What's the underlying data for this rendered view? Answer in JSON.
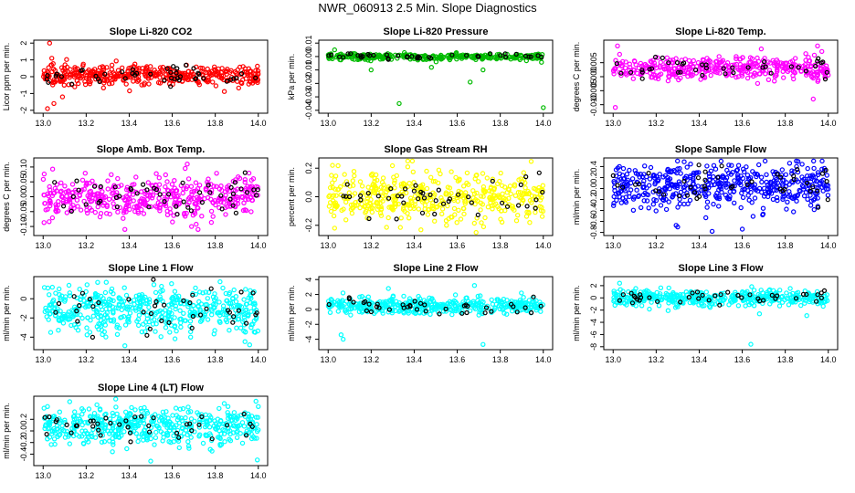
{
  "title": "NWR_060913  2.5 Min. Slope Diagnostics",
  "colors": {
    "axis": "#000000",
    "background": "#ffffff"
  },
  "chart_data": [
    {
      "type": "scatter",
      "title": "Slope Li-820 CO2",
      "ylabel": "Licor ppm per min.",
      "xlim": [
        13.0,
        14.0
      ],
      "ylim": [
        -2,
        2
      ],
      "xticks": [
        "13.0",
        "13.2",
        "13.4",
        "13.6",
        "13.8",
        "14.0"
      ],
      "yticks": [
        -2,
        -1,
        0,
        1,
        2
      ],
      "yticklabels": [
        "-2",
        "-1",
        "0",
        "1",
        "2"
      ],
      "points_color": "#ff0000",
      "main_band": {
        "center": 0.1,
        "spread": 0.35
      },
      "outliers": [
        [
          13.03,
          2.0
        ],
        [
          13.02,
          -1.9
        ],
        [
          13.05,
          -1.6
        ],
        [
          13.04,
          1.1
        ],
        [
          13.09,
          -1.2
        ]
      ],
      "series": [
        {
          "name": "points",
          "color": "#ff0000",
          "n": 420
        },
        {
          "name": "highlights",
          "color": "#000000",
          "n": 45
        }
      ]
    },
    {
      "type": "scatter",
      "title": "Slope Li-820 Pressure",
      "ylabel": "kPa per min.",
      "xlim": [
        13.0,
        14.0
      ],
      "ylim": [
        -0.04,
        0.01
      ],
      "xticks": [
        "13.0",
        "13.2",
        "13.4",
        "13.6",
        "13.8",
        "14.0"
      ],
      "yticks": [
        -0.04,
        -0.03,
        -0.02,
        -0.01,
        0.0,
        0.01
      ],
      "yticklabels": [
        "-0.04",
        "-0.03",
        "-0.02",
        "-0.01",
        "0.00",
        "0.01"
      ],
      "points_color": "#00bb00",
      "main_band": {
        "center": 0.0,
        "spread": 0.0015
      },
      "outliers": [
        [
          13.33,
          -0.035
        ],
        [
          13.66,
          -0.019
        ],
        [
          14.0,
          -0.038
        ],
        [
          13.03,
          0.005
        ],
        [
          13.48,
          -0.008
        ],
        [
          13.72,
          -0.01
        ],
        [
          13.2,
          -0.01
        ]
      ],
      "series": [
        {
          "name": "points",
          "color": "#00bb00",
          "n": 320
        },
        {
          "name": "highlights",
          "color": "#000000",
          "n": 40
        }
      ]
    },
    {
      "type": "scatter",
      "title": "Slope Li-820 Temp.",
      "ylabel": "degrees C per min.",
      "xlim": [
        13.0,
        14.0
      ],
      "ylim": [
        -0.012,
        0.012
      ],
      "xticks": [
        "13.0",
        "13.2",
        "13.4",
        "13.6",
        "13.8",
        "14.0"
      ],
      "yticks": [
        -0.01,
        -0.005,
        0.0,
        0.005
      ],
      "yticklabels": [
        "-0.010",
        "-0.005",
        "0.000",
        "0.005"
      ],
      "points_color": "#ff00ff",
      "main_band": {
        "center": 0.003,
        "spread": 0.0025
      },
      "outliers": [
        [
          13.02,
          0.011
        ],
        [
          13.03,
          0.008
        ],
        [
          13.01,
          -0.011
        ],
        [
          13.95,
          0.011
        ],
        [
          13.97,
          0.009
        ],
        [
          13.93,
          -0.008
        ]
      ],
      "series": [
        {
          "name": "points",
          "color": "#ff00ff",
          "n": 380
        },
        {
          "name": "highlights",
          "color": "#000000",
          "n": 40
        }
      ]
    },
    {
      "type": "scatter",
      "title": "Slope Amb. Box Temp.",
      "ylabel": "degrees C per min.",
      "xlim": [
        13.0,
        14.0
      ],
      "ylim": [
        -0.12,
        0.12
      ],
      "xticks": [
        "13.0",
        "13.2",
        "13.4",
        "13.6",
        "13.8",
        "14.0"
      ],
      "yticks": [
        -0.1,
        -0.05,
        0.0,
        0.05,
        0.1
      ],
      "yticklabels": [
        "-0.10",
        "-0.05",
        "0.00",
        "0.05",
        "0.10"
      ],
      "points_color": "#ff00ff",
      "main_band": {
        "center": 0.0,
        "spread": 0.045
      },
      "outliers": [
        [
          13.67,
          0.11
        ],
        [
          13.66,
          0.095
        ],
        [
          13.69,
          -0.1
        ],
        [
          13.72,
          -0.11
        ],
        [
          13.38,
          -0.11
        ]
      ],
      "series": [
        {
          "name": "points",
          "color": "#ff00ff",
          "n": 420
        },
        {
          "name": "highlights",
          "color": "#000000",
          "n": 50
        }
      ]
    },
    {
      "type": "scatter",
      "title": "Slope Gas Stream RH",
      "ylabel": "percent per min.",
      "xlim": [
        13.0,
        14.0
      ],
      "ylim": [
        -0.25,
        0.25
      ],
      "xticks": [
        "13.0",
        "13.2",
        "13.4",
        "13.6",
        "13.8",
        "14.0"
      ],
      "yticks": [
        -0.2,
        0.0,
        0.2
      ],
      "yticklabels": [
        "-0.2",
        "0.0",
        "0.2"
      ],
      "points_color": "#ffff00",
      "main_band": {
        "center": 0.0,
        "spread": 0.1
      },
      "outliers": [
        [
          13.02,
          0.22
        ],
        [
          13.03,
          -0.22
        ],
        [
          13.37,
          0.21
        ],
        [
          13.55,
          -0.2
        ]
      ],
      "series": [
        {
          "name": "points",
          "color": "#ffff00",
          "n": 450
        },
        {
          "name": "highlights",
          "color": "#000000",
          "n": 45
        }
      ]
    },
    {
      "type": "scatter",
      "title": "Slope Sample Flow",
      "ylabel": "ml/min per min.",
      "xlim": [
        13.0,
        14.0
      ],
      "ylim": [
        -0.8,
        0.5
      ],
      "xticks": [
        "13.0",
        "13.2",
        "13.4",
        "13.6",
        "13.8",
        "14.0"
      ],
      "yticks": [
        -0.8,
        -0.6,
        -0.4,
        -0.2,
        0.0,
        0.2,
        0.4
      ],
      "yticklabels": [
        "-0.8",
        "-0.6",
        "-0.4",
        "-0.2",
        "0.0",
        "0.2",
        "0.4"
      ],
      "points_color": "#0000ff",
      "main_band": {
        "center": 0.05,
        "spread": 0.25
      },
      "outliers": [
        [
          13.46,
          -0.78
        ],
        [
          13.6,
          -0.74
        ],
        [
          13.3,
          -0.7
        ],
        [
          13.82,
          0.46
        ],
        [
          13.55,
          0.42
        ]
      ],
      "series": [
        {
          "name": "points",
          "color": "#0000ff",
          "n": 480
        },
        {
          "name": "highlights",
          "color": "#000000",
          "n": 45
        }
      ]
    },
    {
      "type": "scatter",
      "title": "Slope Line 1 Flow",
      "ylabel": "ml/min per min.",
      "xlim": [
        13.0,
        14.0
      ],
      "ylim": [
        -5,
        2
      ],
      "xticks": [
        "13.0",
        "13.2",
        "13.4",
        "13.6",
        "13.8",
        "14.0"
      ],
      "yticks": [
        -4,
        -2,
        0
      ],
      "yticklabels": [
        "-4",
        "-2",
        "0"
      ],
      "points_color": "#00ffff",
      "main_band": {
        "center": -1.2,
        "spread": 1.5
      },
      "outliers": [
        [
          13.38,
          -4.9
        ],
        [
          13.12,
          1.4
        ],
        [
          13.55,
          1.3
        ],
        [
          13.96,
          -4.8
        ]
      ],
      "series": [
        {
          "name": "points",
          "color": "#00ffff",
          "n": 480
        },
        {
          "name": "highlights",
          "color": "#000000",
          "n": 40
        }
      ]
    },
    {
      "type": "scatter",
      "title": "Slope Line 2 Flow",
      "ylabel": "ml/min per min.",
      "xlim": [
        13.0,
        14.0
      ],
      "ylim": [
        -5,
        4
      ],
      "xticks": [
        "13.0",
        "13.2",
        "13.4",
        "13.6",
        "13.8",
        "14.0"
      ],
      "yticks": [
        -4,
        -2,
        0,
        2,
        4
      ],
      "yticklabels": [
        "-4",
        "-2",
        "0",
        "2",
        "4"
      ],
      "points_color": "#00ffff",
      "main_band": {
        "center": 0.5,
        "spread": 0.7
      },
      "outliers": [
        [
          13.06,
          -3.4
        ],
        [
          13.07,
          -4.0
        ],
        [
          13.68,
          3.2
        ],
        [
          13.72,
          -4.7
        ],
        [
          13.28,
          2.8
        ]
      ],
      "series": [
        {
          "name": "points",
          "color": "#00ffff",
          "n": 420
        },
        {
          "name": "highlights",
          "color": "#000000",
          "n": 40
        }
      ]
    },
    {
      "type": "scatter",
      "title": "Slope Line 3 Flow",
      "ylabel": "ml/min per min.",
      "xlim": [
        13.0,
        14.0
      ],
      "ylim": [
        -8,
        3
      ],
      "xticks": [
        "13.0",
        "13.2",
        "13.4",
        "13.6",
        "13.8",
        "14.0"
      ],
      "yticks": [
        -8,
        -6,
        -4,
        -2,
        0,
        2
      ],
      "yticklabels": [
        "-8",
        "-6",
        "-4",
        "-2",
        "0",
        "2"
      ],
      "points_color": "#00ffff",
      "main_band": {
        "center": 0.0,
        "spread": 0.8
      },
      "outliers": [
        [
          13.64,
          -7.6
        ],
        [
          13.68,
          -2.6
        ],
        [
          13.9,
          -2.9
        ],
        [
          13.03,
          2.4
        ]
      ],
      "series": [
        {
          "name": "points",
          "color": "#00ffff",
          "n": 420
        },
        {
          "name": "highlights",
          "color": "#000000",
          "n": 40
        }
      ]
    },
    {
      "type": "scatter",
      "title": "Slope Line 4 (LT) Flow",
      "ylabel": "ml/min per min.",
      "xlim": [
        13.0,
        14.0
      ],
      "ylim": [
        -0.55,
        0.55
      ],
      "xticks": [
        "13.0",
        "13.2",
        "13.4",
        "13.6",
        "13.8",
        "14.0"
      ],
      "yticks": [
        -0.4,
        -0.2,
        0.0,
        0.2
      ],
      "yticklabels": [
        "-0.4",
        "-0.2",
        "0.0",
        "0.2"
      ],
      "points_color": "#00ffff",
      "main_band": {
        "center": 0.08,
        "spread": 0.2
      },
      "outliers": [
        [
          13.5,
          -0.52
        ],
        [
          13.02,
          0.42
        ],
        [
          14.0,
          0.42
        ],
        [
          13.25,
          0.45
        ]
      ],
      "series": [
        {
          "name": "points",
          "color": "#00ffff",
          "n": 480
        },
        {
          "name": "highlights",
          "color": "#000000",
          "n": 40
        }
      ]
    }
  ]
}
